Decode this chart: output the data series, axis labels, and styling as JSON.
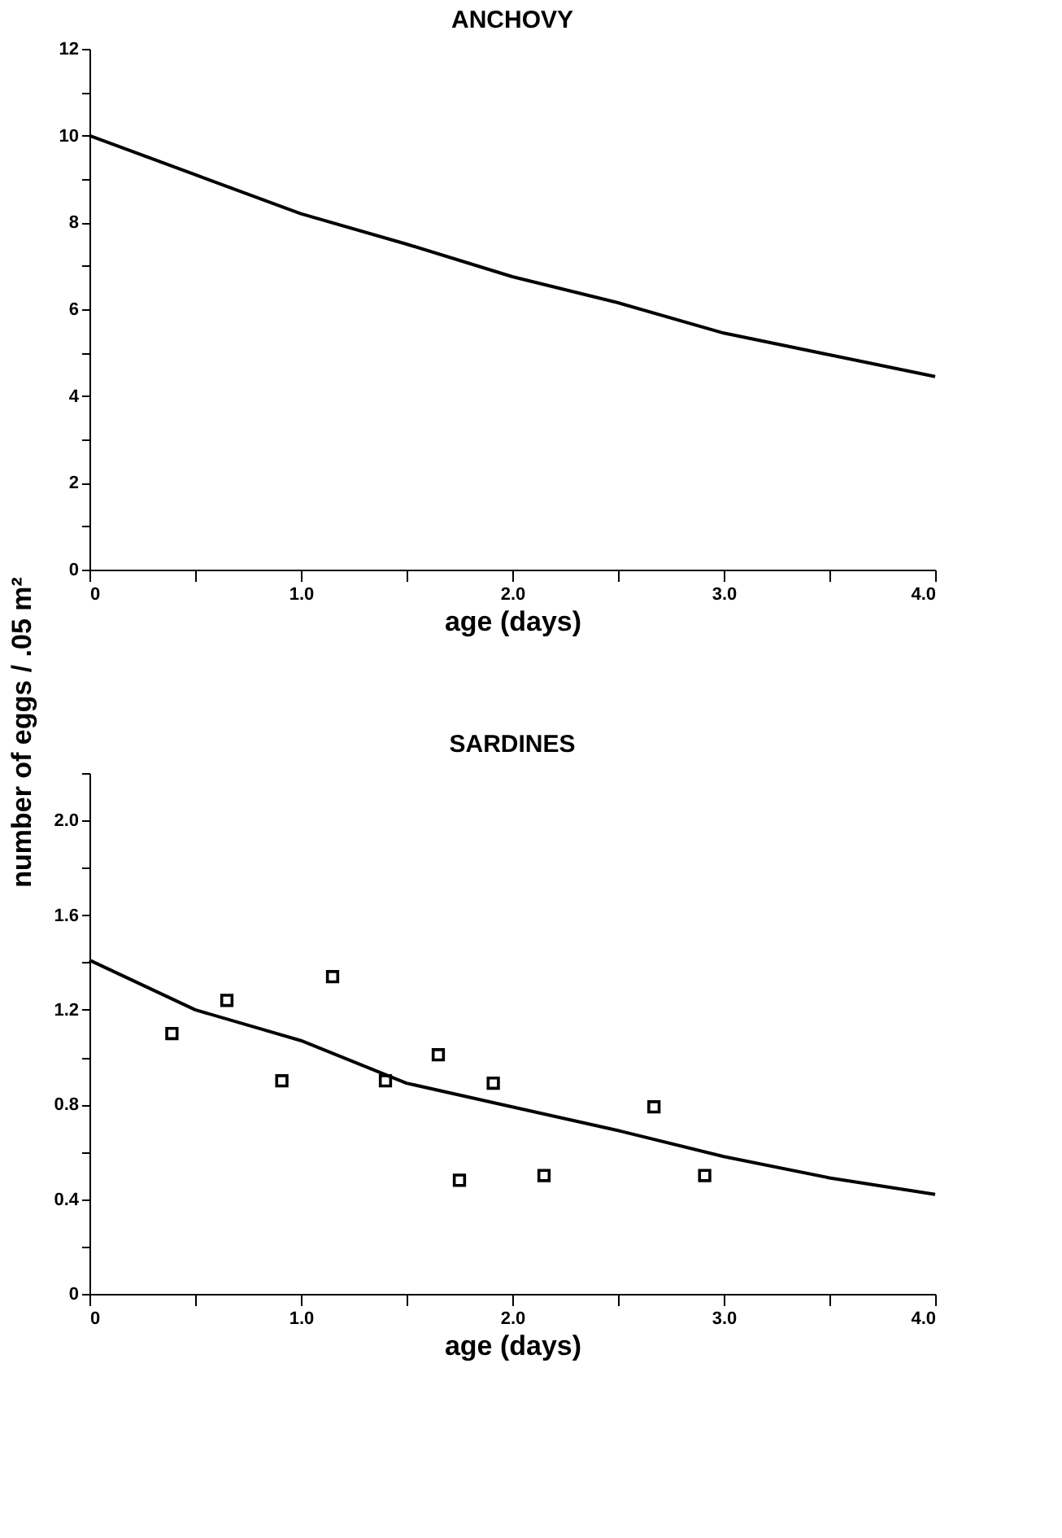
{
  "chart_data": [
    {
      "type": "line",
      "title": "ANCHOVY",
      "xlabel": "age (days)",
      "ylabel": "number of eggs / .05 m²",
      "xlim": [
        0,
        4
      ],
      "ylim": [
        0,
        12
      ],
      "grid": false,
      "legend": false,
      "line_style": "solid",
      "marker": "none",
      "xticks": [
        0,
        {
          "value": 0.5,
          "label": null
        },
        {
          "value": 1,
          "label": "1.0"
        },
        {
          "value": 1.5,
          "label": null
        },
        {
          "value": 2,
          "label": "2.0"
        },
        {
          "value": 2.5,
          "label": null
        },
        {
          "value": 3,
          "label": "3.0"
        },
        {
          "value": 3.5,
          "label": null
        },
        {
          "value": 4,
          "label": "4.0"
        }
      ],
      "yticks": [
        0,
        {
          "value": 1,
          "label": null
        },
        2,
        {
          "value": 3,
          "label": null
        },
        4,
        {
          "value": 5,
          "label": null
        },
        6,
        {
          "value": 7,
          "label": null
        },
        8,
        {
          "value": 9,
          "label": null
        },
        10,
        {
          "value": 11,
          "label": null
        },
        12
      ],
      "series": [
        {
          "color": "#000000",
          "x": [
            0,
            0.5,
            1.0,
            1.5,
            2.0,
            2.5,
            3.0,
            3.5,
            4.0
          ],
          "values": [
            10,
            9.1,
            8.2,
            7.5,
            6.75,
            6.15,
            5.45,
            4.95,
            4.45
          ]
        }
      ]
    },
    {
      "type": "line",
      "title": "SARDINES",
      "xlabel": "age (days)",
      "xlim": [
        0,
        4
      ],
      "ylim": [
        0,
        2.2
      ],
      "grid": false,
      "legend": false,
      "line_style": "solid",
      "xticks": [
        0,
        {
          "value": 0.5,
          "label": null
        },
        {
          "value": 1,
          "label": "1.0"
        },
        {
          "value": 1.5,
          "label": null
        },
        {
          "value": 2,
          "label": "2.0"
        },
        {
          "value": 2.5,
          "label": null
        },
        {
          "value": 3,
          "label": "3.0"
        },
        {
          "value": 3.5,
          "label": null
        },
        {
          "value": 4,
          "label": "4.0"
        }
      ],
      "yticks": [
        0,
        {
          "value": 0.2,
          "label": null
        },
        0.4,
        {
          "value": 0.6,
          "label": null
        },
        0.8,
        {
          "value": 1.0,
          "label": null
        },
        1.2,
        {
          "value": 1.4,
          "label": null
        },
        1.6,
        {
          "value": 1.8,
          "label": null
        },
        {
          "value": 2,
          "label": "2.0"
        },
        {
          "value": 2.2,
          "label": null
        }
      ],
      "series": [
        {
          "type": "line",
          "marker": "none",
          "color": "#000000",
          "x": [
            0,
            0.5,
            1.0,
            1.5,
            2.0,
            2.5,
            3.0,
            3.5,
            4.0
          ],
          "values": [
            1.41,
            1.2,
            1.07,
            0.89,
            0.79,
            0.69,
            0.58,
            0.49,
            0.42
          ]
        },
        {
          "type": "scatter",
          "marker": "square",
          "color": "#000000",
          "x": [
            0.39,
            0.65,
            0.91,
            1.15,
            1.4,
            1.65,
            1.75,
            1.91,
            2.15,
            2.67,
            2.91
          ],
          "values": [
            1.1,
            1.24,
            0.9,
            1.34,
            0.9,
            1.01,
            0.48,
            0.89,
            0.5,
            0.79,
            0.5
          ]
        }
      ]
    }
  ]
}
